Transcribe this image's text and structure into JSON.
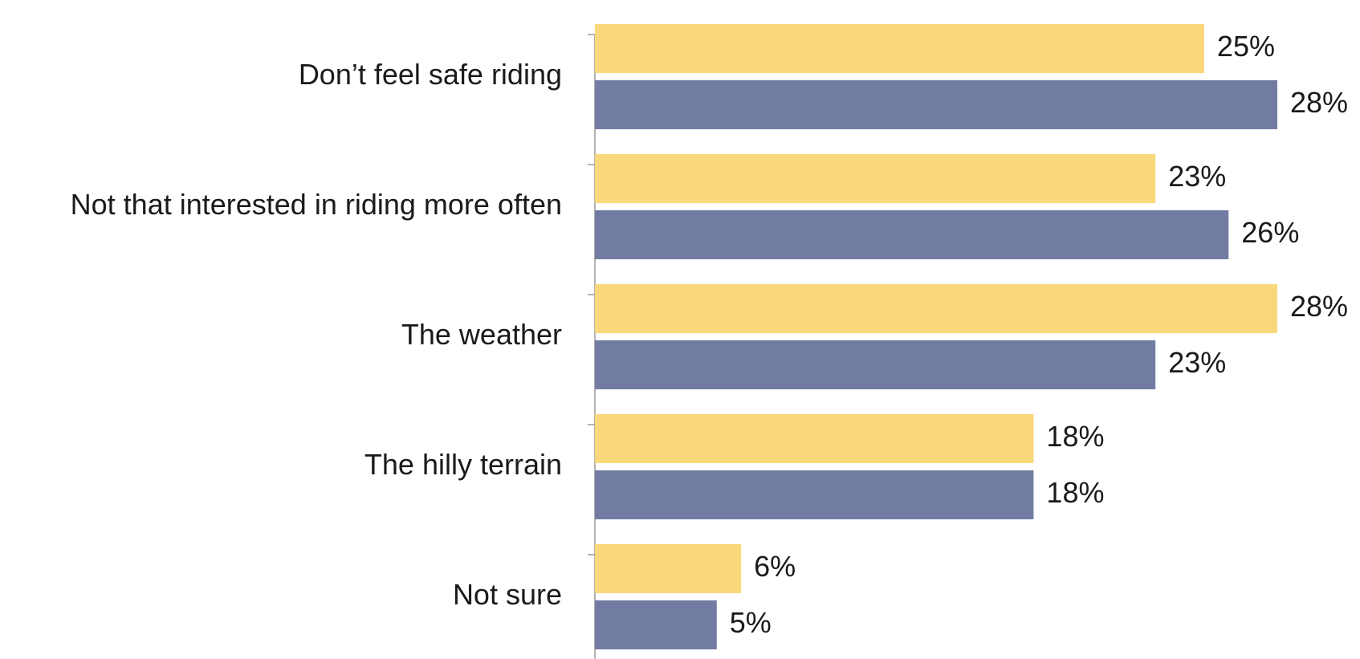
{
  "chart_data": {
    "type": "hbar",
    "categories": [
      "Don’t feel safe riding",
      "Not that interested in riding more often",
      "The weather",
      "The hilly terrain",
      "Not sure"
    ],
    "series": [
      {
        "color": "#f8d87a",
        "values": [
          25,
          23,
          28,
          18,
          6
        ],
        "value_labels": [
          "25%",
          "23%",
          "28%",
          "18%",
          "6%"
        ]
      },
      {
        "color": "#727ca2",
        "values": [
          28,
          26,
          23,
          18,
          5
        ],
        "value_labels": [
          "28%",
          "26%",
          "23%",
          "18%",
          "5%"
        ]
      }
    ],
    "xlim": [
      0,
      28
    ]
  }
}
